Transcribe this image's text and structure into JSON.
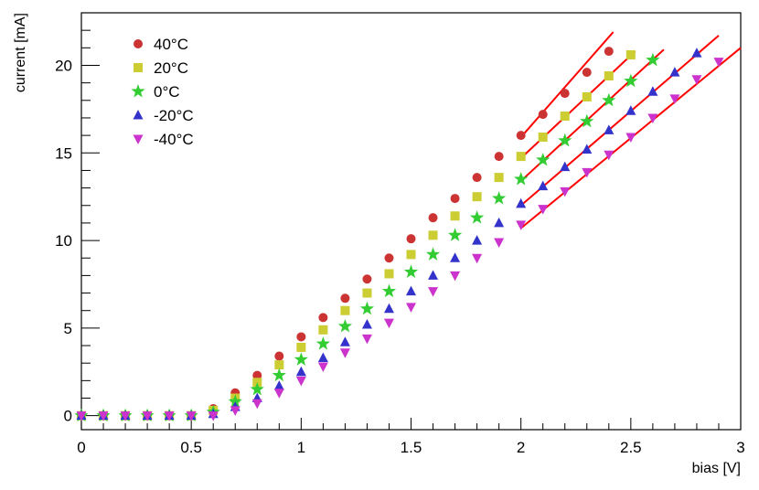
{
  "chart_data": {
    "type": "scatter",
    "xlabel": "bias [V]",
    "ylabel": "current [mA]",
    "xlim": [
      0,
      3
    ],
    "ylim": [
      -0.8,
      23
    ],
    "xticks": [
      0,
      0.5,
      1,
      1.5,
      2,
      2.5,
      3
    ],
    "xtick_labels": [
      "0",
      "0.5",
      "1",
      "1.5",
      "2",
      "2.5",
      "3"
    ],
    "yticks": [
      0,
      5,
      10,
      15,
      20
    ],
    "ytick_labels": [
      "0",
      "5",
      "10",
      "15",
      "20"
    ],
    "legend_position": "top-left",
    "grid": false,
    "fit_color": "#ff0000",
    "series": [
      {
        "name": "40°C",
        "marker": "circle",
        "color": "#cc3333",
        "x": [
          0,
          0.1,
          0.2,
          0.3,
          0.4,
          0.5,
          0.6,
          0.7,
          0.8,
          0.9,
          1.0,
          1.1,
          1.2,
          1.3,
          1.4,
          1.5,
          1.6,
          1.7,
          1.8,
          1.9,
          2.0,
          2.1,
          2.2,
          2.3,
          2.4
        ],
        "y": [
          0,
          0,
          0,
          0,
          0,
          0,
          0.4,
          1.3,
          2.3,
          3.4,
          4.5,
          5.6,
          6.7,
          7.8,
          9.0,
          10.1,
          11.3,
          12.4,
          13.6,
          14.8,
          16.0,
          17.2,
          18.4,
          19.6,
          20.8
        ],
        "fit": {
          "x": [
            2.0,
            2.42
          ],
          "y": [
            15.9,
            21.9
          ]
        }
      },
      {
        "name": "20°C",
        "marker": "square",
        "color": "#cccc33",
        "x": [
          0,
          0.1,
          0.2,
          0.3,
          0.4,
          0.5,
          0.6,
          0.7,
          0.8,
          0.9,
          1.0,
          1.1,
          1.2,
          1.3,
          1.4,
          1.5,
          1.6,
          1.7,
          1.8,
          1.9,
          2.0,
          2.1,
          2.2,
          2.3,
          2.4,
          2.5
        ],
        "y": [
          0,
          0,
          0,
          0,
          0,
          0,
          0.3,
          1.0,
          1.9,
          2.9,
          3.9,
          4.9,
          6.0,
          7.0,
          8.1,
          9.2,
          10.3,
          11.4,
          12.5,
          13.6,
          14.8,
          15.9,
          17.1,
          18.2,
          19.4,
          20.6
        ],
        "fit": {
          "x": [
            2.0,
            2.52
          ],
          "y": [
            14.7,
            20.8
          ]
        }
      },
      {
        "name": "0°C",
        "marker": "star",
        "color": "#33cc33",
        "x": [
          0,
          0.1,
          0.2,
          0.3,
          0.4,
          0.5,
          0.6,
          0.7,
          0.8,
          0.9,
          1.0,
          1.1,
          1.2,
          1.3,
          1.4,
          1.5,
          1.6,
          1.7,
          1.8,
          1.9,
          2.0,
          2.1,
          2.2,
          2.3,
          2.4,
          2.5,
          2.6
        ],
        "y": [
          0,
          0,
          0,
          0,
          0,
          0,
          0.2,
          0.8,
          1.5,
          2.3,
          3.2,
          4.1,
          5.1,
          6.1,
          7.1,
          8.2,
          9.2,
          10.3,
          11.3,
          12.4,
          13.5,
          14.6,
          15.7,
          16.8,
          18.0,
          19.1,
          20.3
        ],
        "fit": {
          "x": [
            2.0,
            2.65
          ],
          "y": [
            13.4,
            20.9
          ]
        }
      },
      {
        "name": "-20°C",
        "marker": "triangle-up",
        "color": "#3333cc",
        "x": [
          0,
          0.1,
          0.2,
          0.3,
          0.4,
          0.5,
          0.6,
          0.7,
          0.8,
          0.9,
          1.0,
          1.1,
          1.2,
          1.3,
          1.4,
          1.5,
          1.6,
          1.7,
          1.8,
          1.9,
          2.0,
          2.1,
          2.2,
          2.3,
          2.4,
          2.5,
          2.6,
          2.7,
          2.8
        ],
        "y": [
          0,
          0,
          0,
          0,
          0,
          0,
          0.1,
          0.5,
          1.0,
          1.7,
          2.5,
          3.3,
          4.2,
          5.2,
          6.1,
          7.1,
          8.0,
          9.0,
          10.0,
          11.0,
          12.1,
          13.1,
          14.2,
          15.2,
          16.3,
          17.4,
          18.5,
          19.6,
          20.7
        ],
        "fit": {
          "x": [
            2.0,
            2.9
          ],
          "y": [
            12.0,
            21.7
          ]
        }
      },
      {
        "name": "-40°C",
        "marker": "triangle-down",
        "color": "#cc33cc",
        "x": [
          0,
          0.1,
          0.2,
          0.3,
          0.4,
          0.5,
          0.6,
          0.7,
          0.8,
          0.9,
          1.0,
          1.1,
          1.2,
          1.3,
          1.4,
          1.5,
          1.6,
          1.7,
          1.8,
          1.9,
          2.0,
          2.1,
          2.2,
          2.3,
          2.4,
          2.5,
          2.6,
          2.7,
          2.8,
          2.9
        ],
        "y": [
          0,
          0,
          0,
          0,
          0,
          0,
          0,
          0.3,
          0.7,
          1.3,
          2.0,
          2.8,
          3.6,
          4.4,
          5.3,
          6.2,
          7.1,
          8.0,
          9.0,
          9.9,
          10.9,
          11.8,
          12.8,
          13.9,
          14.9,
          15.9,
          17.0,
          18.1,
          19.2,
          20.2
        ],
        "fit": {
          "x": [
            2.0,
            3.0
          ],
          "y": [
            10.7,
            21.0
          ]
        }
      }
    ]
  }
}
